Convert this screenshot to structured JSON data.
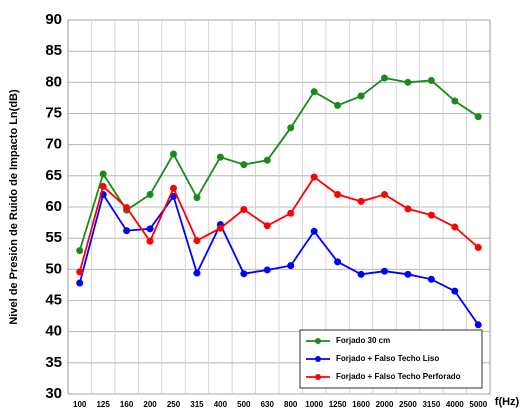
{
  "chart_data": {
    "type": "line",
    "y_label": "Nivel de Presión de Ruido de Impacto Ln(dB)",
    "x_label": "f(Hz)",
    "categories": [
      "100",
      "125",
      "160",
      "200",
      "250",
      "315",
      "400",
      "500",
      "630",
      "800",
      "1000",
      "1250",
      "1600",
      "2000",
      "2500",
      "3150",
      "4000",
      "5000"
    ],
    "series": [
      {
        "name": "Forjado 30 cm",
        "color": "#1a8a1a",
        "values": [
          53,
          65.3,
          59.5,
          62,
          68.5,
          61.5,
          68,
          66.8,
          67.5,
          72.7,
          78.5,
          76.3,
          77.8,
          80.7,
          80,
          80.3,
          77,
          74.5
        ]
      },
      {
        "name": "Forjado + Falso Techo Liso",
        "color": "#0000ff",
        "values": [
          47.8,
          62,
          56.2,
          56.5,
          61.7,
          49.4,
          57.2,
          49.3,
          49.9,
          50.6,
          56.1,
          51.2,
          49.2,
          49.7,
          49.2,
          48.4,
          46.5,
          41.1
        ]
      },
      {
        "name": "Forjado + Falso Techo Perforado",
        "color": "#ff0000",
        "values": [
          49.6,
          63.3,
          59.9,
          54.5,
          63,
          54.6,
          56.6,
          59.6,
          57,
          59,
          64.8,
          62,
          60.9,
          62,
          59.7,
          58.7,
          56.8,
          53.5
        ]
      }
    ],
    "ylim": [
      30,
      90
    ],
    "yticks": [
      30,
      35,
      40,
      45,
      50,
      55,
      60,
      65,
      70,
      75,
      80,
      85,
      90
    ],
    "grid": true,
    "legend": "lower-right"
  }
}
